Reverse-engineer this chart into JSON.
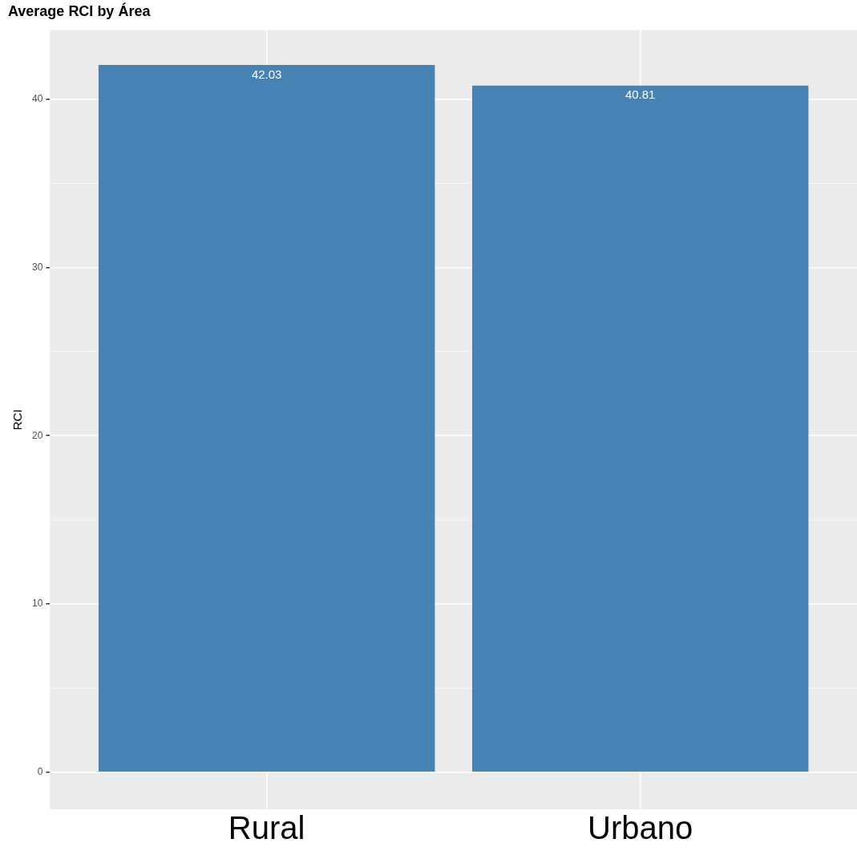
{
  "chart_data": {
    "type": "bar",
    "title": "Average RCI by Área",
    "ylabel": "RCI",
    "categories": [
      "Rural",
      "Urbano"
    ],
    "values": [
      42.03,
      40.81
    ],
    "color": "#4682b4",
    "data_labels": true,
    "grid": true,
    "ylim": [
      -2.2,
      44.1
    ],
    "yticks": [
      0,
      10,
      20,
      30,
      40
    ]
  }
}
